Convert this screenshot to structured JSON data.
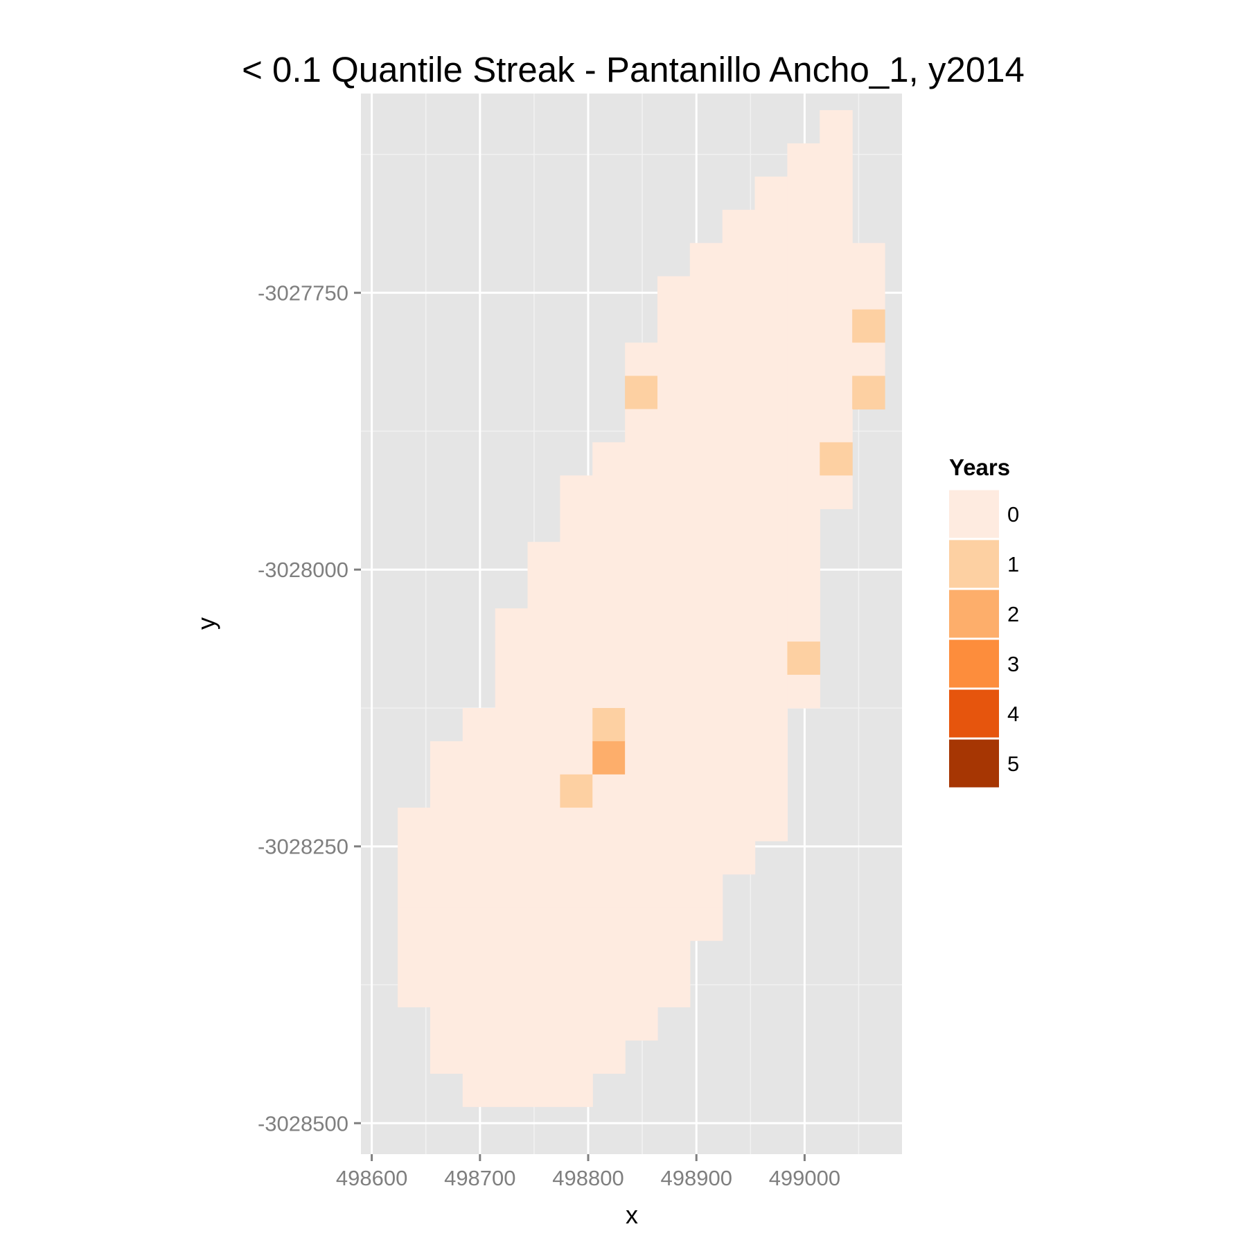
{
  "chart_data": {
    "type": "heatmap",
    "title": "< 0.1 Quantile Streak - Pantanillo Ancho_1, y2014",
    "xlabel": "x",
    "ylabel": "y",
    "xlim": [
      498590,
      499090
    ],
    "ylim": [
      -3028528,
      -3027570
    ],
    "x_ticks": [
      498600,
      498700,
      498800,
      498900,
      499000
    ],
    "y_ticks": [
      -3028500,
      -3028250,
      -3028000,
      -3027750
    ],
    "x_tick_labels": [
      "498600",
      "498700",
      "498800",
      "498900",
      "499000"
    ],
    "y_tick_labels": [
      "-3028500",
      "-3028250",
      "-3028000",
      "-3027750"
    ],
    "cell_size": 30,
    "grid": true,
    "legend": {
      "title": "Years",
      "position": "right",
      "levels": [
        "0",
        "1",
        "2",
        "3",
        "4",
        "5"
      ],
      "colors": [
        "#feebe0",
        "#fdd0a2",
        "#fdae6b",
        "#fd8d3c",
        "#e6550d",
        "#a63603"
      ]
    },
    "rows": [
      {
        "y": -3027600,
        "x_start": 499029,
        "x_end": 499029
      },
      {
        "y": -3027630,
        "x_start": 498999,
        "x_end": 499029
      },
      {
        "y": -3027660,
        "x_start": 498969,
        "x_end": 499029
      },
      {
        "y": -3027690,
        "x_start": 498939,
        "x_end": 499029
      },
      {
        "y": -3027720,
        "x_start": 498909,
        "x_end": 499059
      },
      {
        "y": -3027750,
        "x_start": 498879,
        "x_end": 499059
      },
      {
        "y": -3027780,
        "x_start": 498879,
        "x_end": 499059
      },
      {
        "y": -3027810,
        "x_start": 498849,
        "x_end": 499059
      },
      {
        "y": -3027840,
        "x_start": 498849,
        "x_end": 499059
      },
      {
        "y": -3027870,
        "x_start": 498849,
        "x_end": 499029
      },
      {
        "y": -3027900,
        "x_start": 498819,
        "x_end": 499029
      },
      {
        "y": -3027930,
        "x_start": 498789,
        "x_end": 499029
      },
      {
        "y": -3027960,
        "x_start": 498789,
        "x_end": 498999
      },
      {
        "y": -3027990,
        "x_start": 498759,
        "x_end": 498999
      },
      {
        "y": -3028020,
        "x_start": 498759,
        "x_end": 498999
      },
      {
        "y": -3028050,
        "x_start": 498729,
        "x_end": 498999
      },
      {
        "y": -3028080,
        "x_start": 498729,
        "x_end": 498999
      },
      {
        "y": -3028110,
        "x_start": 498729,
        "x_end": 498999
      },
      {
        "y": -3028140,
        "x_start": 498699,
        "x_end": 498969
      },
      {
        "y": -3028170,
        "x_start": 498669,
        "x_end": 498969
      },
      {
        "y": -3028200,
        "x_start": 498669,
        "x_end": 498969
      },
      {
        "y": -3028230,
        "x_start": 498639,
        "x_end": 498969
      },
      {
        "y": -3028260,
        "x_start": 498639,
        "x_end": 498939
      },
      {
        "y": -3028290,
        "x_start": 498639,
        "x_end": 498909
      },
      {
        "y": -3028320,
        "x_start": 498639,
        "x_end": 498909
      },
      {
        "y": -3028350,
        "x_start": 498639,
        "x_end": 498879
      },
      {
        "y": -3028380,
        "x_start": 498639,
        "x_end": 498879
      },
      {
        "y": -3028410,
        "x_start": 498669,
        "x_end": 498849
      },
      {
        "y": -3028440,
        "x_start": 498669,
        "x_end": 498819
      },
      {
        "y": -3028470,
        "x_start": 498699,
        "x_end": 498789
      }
    ],
    "nonzero_cells": [
      {
        "x": 499059,
        "y": -3027780,
        "value": 1
      },
      {
        "x": 499059,
        "y": -3027840,
        "value": 1
      },
      {
        "x": 498849,
        "y": -3027840,
        "value": 1
      },
      {
        "x": 499029,
        "y": -3027900,
        "value": 1
      },
      {
        "x": 498999,
        "y": -3028080,
        "value": 1
      },
      {
        "x": 498819,
        "y": -3028140,
        "value": 1
      },
      {
        "x": 498819,
        "y": -3028170,
        "value": 2
      },
      {
        "x": 498789,
        "y": -3028200,
        "value": 1
      }
    ]
  }
}
